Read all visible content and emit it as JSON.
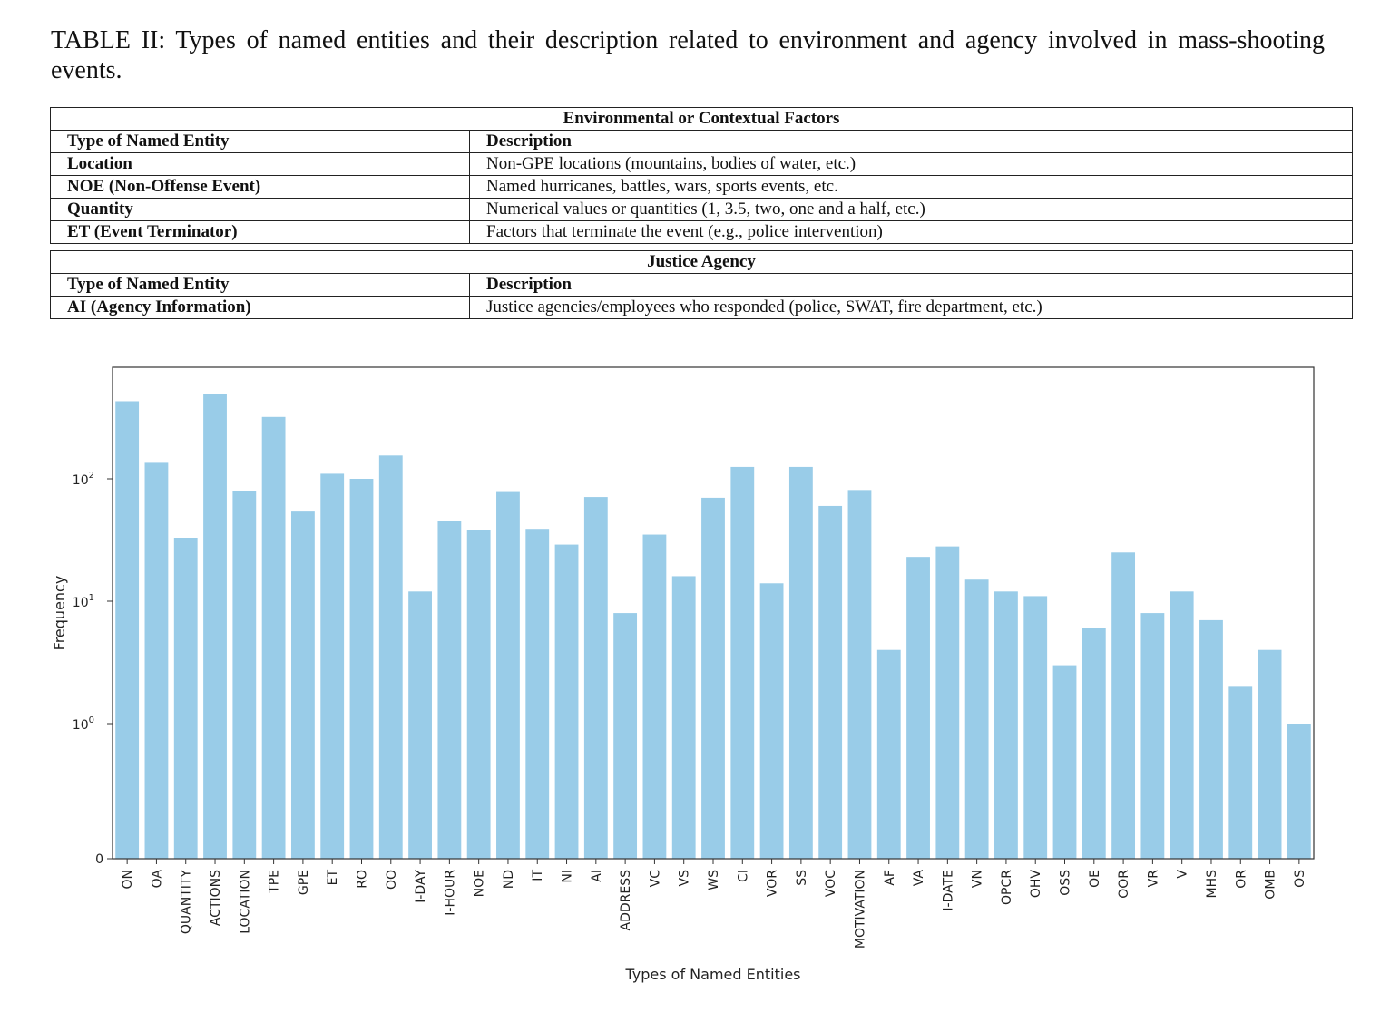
{
  "caption": "TABLE II: Types of named entities and their description related to environment and agency involved in mass-shooting events.",
  "tables": [
    {
      "section": "Environmental or Contextual Factors",
      "headers": [
        "Type of Named Entity",
        "Description"
      ],
      "rows": [
        [
          "Location",
          "Non-GPE locations (mountains, bodies of water, etc.)"
        ],
        [
          "NOE (Non-Offense Event)",
          "Named hurricanes, battles, wars, sports events, etc."
        ],
        [
          "Quantity",
          "Numerical values or quantities (1, 3.5, two, one and a half, etc.)"
        ],
        [
          "ET (Event Terminator)",
          "Factors that terminate the event (e.g., police intervention)"
        ]
      ]
    },
    {
      "section": "Justice Agency",
      "headers": [
        "Type of Named Entity",
        "Description"
      ],
      "rows": [
        [
          "AI (Agency Information)",
          "Justice agencies/employees who responded (police, SWAT, fire department, etc.)"
        ]
      ]
    }
  ],
  "chart_data": {
    "type": "bar",
    "xlabel": "Types of Named Entities",
    "ylabel": "Frequency",
    "yscale": "symlog",
    "yticks": [
      "0",
      "10^0",
      "10^1",
      "10^2"
    ],
    "bar_color": "#99cce8",
    "categories": [
      "ON",
      "OA",
      "QUANTITY",
      "ACTIONS",
      "LOCATION",
      "TPE",
      "GPE",
      "ET",
      "RO",
      "OO",
      "I-DAY",
      "I-HOUR",
      "NOE",
      "ND",
      "IT",
      "NI",
      "AI",
      "ADDRESS",
      "VC",
      "VS",
      "WS",
      "CI",
      "VOR",
      "SS",
      "VOC",
      "MOTIVATION",
      "AF",
      "VA",
      "I-DATE",
      "VN",
      "OPCR",
      "OHV",
      "OSS",
      "OE",
      "OOR",
      "VR",
      "V",
      "MHS",
      "OR",
      "OMB",
      "OS"
    ],
    "values": [
      430,
      135,
      33,
      490,
      79,
      320,
      54,
      110,
      100,
      155,
      12,
      45,
      38,
      78,
      39,
      29,
      71,
      8,
      35,
      16,
      70,
      125,
      14,
      125,
      60,
      81,
      4,
      23,
      28,
      15,
      12,
      11,
      3,
      6,
      25,
      8,
      12,
      7,
      2,
      4,
      1
    ]
  }
}
